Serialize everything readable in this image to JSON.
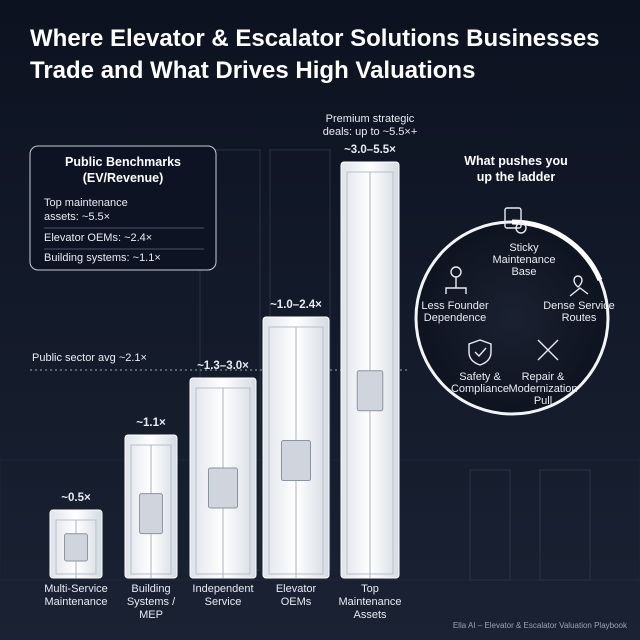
{
  "title": [
    "Where Elevator & Escalator Solutions Businesses",
    "Trade and What Drives High Valuations"
  ],
  "benchmarks": {
    "heading": [
      "Public Benchmarks",
      "(EV/Revenue)"
    ],
    "items": [
      [
        "Top maintenance",
        "assets: ~5.5×"
      ],
      [
        "Elevator OEMs: ~2.4×"
      ],
      [
        "Building systems: ~1.1×"
      ]
    ]
  },
  "public_avg": "Public sector avg ~2.1×",
  "premium_note": [
    "Premium strategic",
    "deals: up to ~5.5×+"
  ],
  "tiers": [
    {
      "label": "~0.5×",
      "name": [
        "Multi-Service",
        "Maintenance"
      ]
    },
    {
      "label": "~1.1×",
      "name": [
        "Building",
        "Systems /",
        "MEP"
      ]
    },
    {
      "label": "~1.3–3.0×",
      "name": [
        "Independent",
        "Service"
      ]
    },
    {
      "label": "~1.0–2.4×",
      "name": [
        "Elevator",
        "OEMs"
      ]
    },
    {
      "label": "~3.0–5.5×",
      "name": [
        "Top",
        "Maintenance",
        "Assets"
      ]
    }
  ],
  "drivers": {
    "heading": [
      "What pushes you",
      "up the ladder"
    ],
    "items": [
      [
        "Sticky",
        "Maintenance",
        "Base"
      ],
      [
        "Less Founder",
        "Dependence"
      ],
      [
        "Dense Service",
        "Routes"
      ],
      [
        "Safety &",
        "Compliance"
      ],
      [
        "Repair &",
        "Modernization",
        "Pull"
      ]
    ]
  },
  "footer": "Ella AI – Elevator & Escalator Valuation Playbook"
}
